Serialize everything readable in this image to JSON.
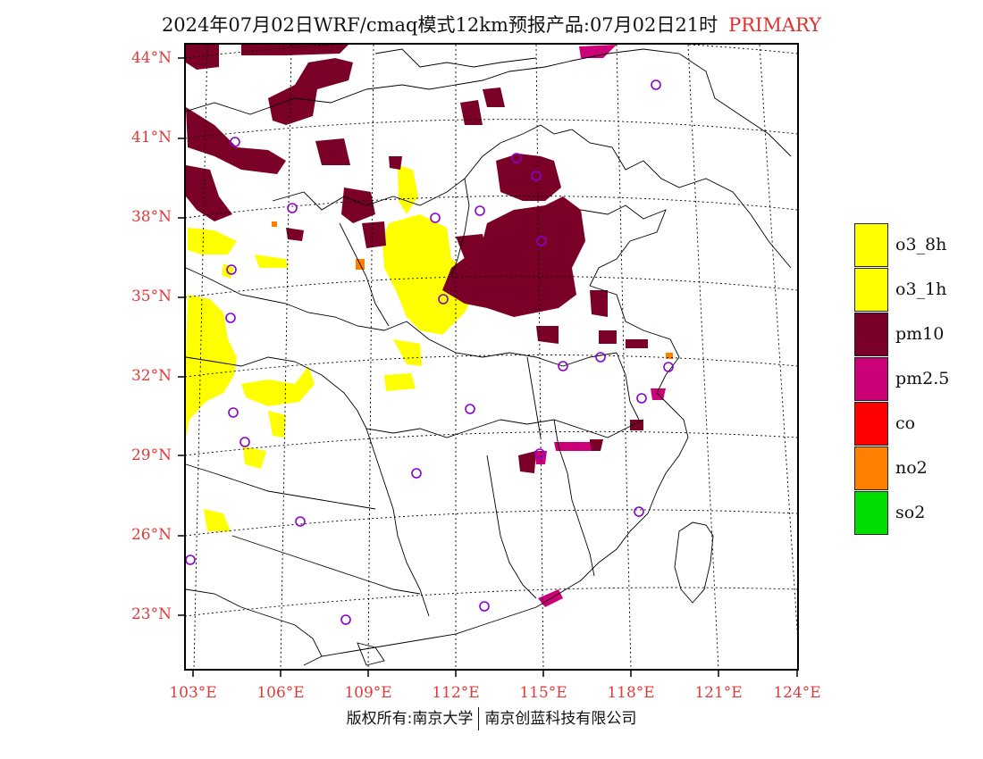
{
  "title": {
    "main": "2024年07月02日WRF/cmaq模式12km预报产品:07月02日21时",
    "tag": "PRIMARY"
  },
  "lat_labels": [
    "44°N",
    "41°N",
    "38°N",
    "35°N",
    "32°N",
    "29°N",
    "26°N",
    "23°N"
  ],
  "lon_labels": [
    "103°E",
    "106°E",
    "109°E",
    "112°E",
    "115°E",
    "118°E",
    "121°E",
    "124°E"
  ],
  "legend": [
    {
      "label": "o3_8h",
      "color": "#ffff00"
    },
    {
      "label": "o3_1h",
      "color": "#ffff00"
    },
    {
      "label": "pm10",
      "color": "#7a0028"
    },
    {
      "label": "pm2.5",
      "color": "#cc0077"
    },
    {
      "label": "co",
      "color": "#ff0000"
    },
    {
      "label": "no2",
      "color": "#ff8000"
    },
    {
      "label": "so2",
      "color": "#00dd00"
    }
  ],
  "footer": {
    "left": "版权所有:南京大学",
    "right": "南京创蓝科技有限公司"
  }
}
